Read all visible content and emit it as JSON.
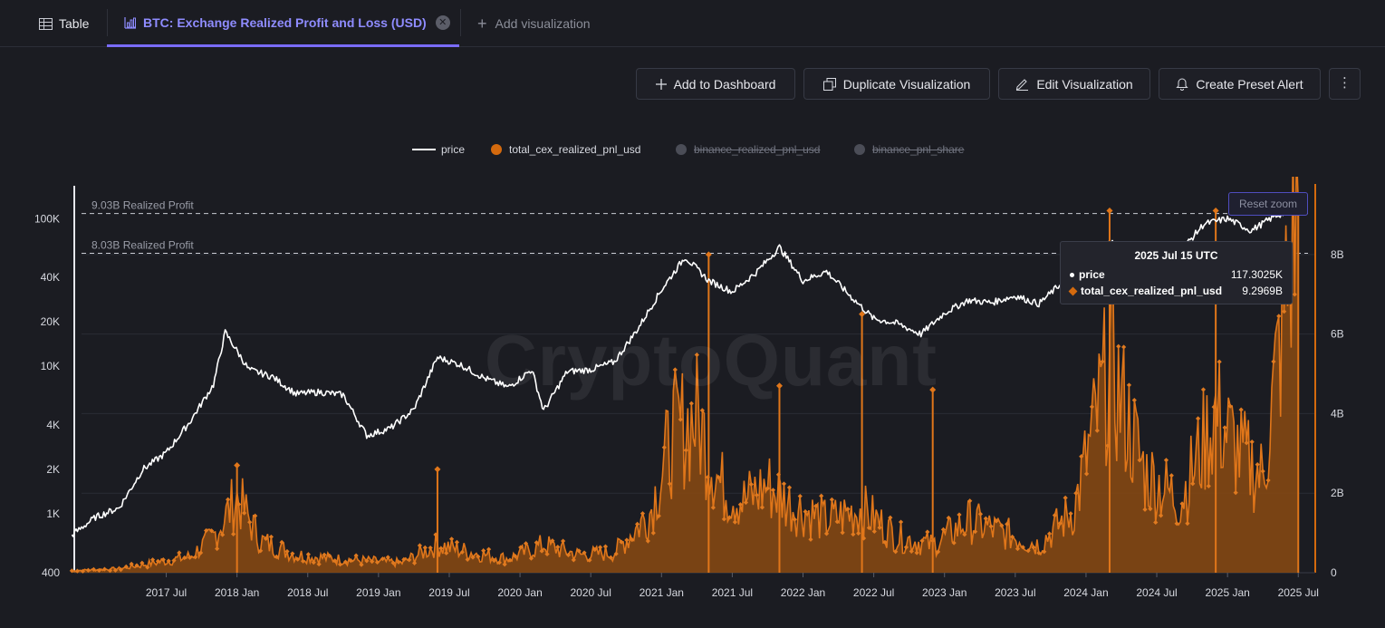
{
  "tabs": {
    "table_label": "Table",
    "active_label": "BTC: Exchange Realized Profit and Loss (USD)",
    "add_label": "Add visualization"
  },
  "toolbar": {
    "add_dashboard": "Add to Dashboard",
    "duplicate": "Duplicate Visualization",
    "edit": "Edit Visualization",
    "preset_alert": "Create Preset Alert",
    "more_icon": "kebab-vertical-icon"
  },
  "legend": [
    {
      "label": "price",
      "color": "#ffffff",
      "enabled": true
    },
    {
      "label": "total_cex_realized_pnl_usd",
      "color": "#d46a0e",
      "enabled": true
    },
    {
      "label": "binance_realized_pnl_usd",
      "color": "#4b4d57",
      "enabled": false
    },
    {
      "label": "binance_pnl_share",
      "color": "#4b4d57",
      "enabled": false
    }
  ],
  "watermark": "CryptoQuant",
  "reset_zoom": "Reset zoom",
  "tooltip": {
    "title": "2025 Jul 15 UTC",
    "rows": [
      {
        "label": "price",
        "value": "117.3025K"
      },
      {
        "label": "total_cex_realized_pnl_usd",
        "value": "9.2969B"
      }
    ]
  },
  "chart_data": {
    "type": "line",
    "x_ticks": [
      "2017 Jul",
      "2018 Jan",
      "2018 Jul",
      "2019 Jan",
      "2019 Jul",
      "2020 Jan",
      "2020 Jul",
      "2021 Jan",
      "2021 Jul",
      "2022 Jan",
      "2022 Jul",
      "2023 Jan",
      "2023 Jul",
      "2024 Jan",
      "2024 Jul",
      "2025 Jan",
      "2025 Jul"
    ],
    "y_left_ticks": [
      "100K",
      "40K",
      "20K",
      "10K",
      "4K",
      "2K",
      "1K",
      "400"
    ],
    "y_left_scale": "log",
    "y_right_ticks": [
      "8B",
      "6B",
      "4B",
      "2B",
      "0"
    ],
    "annotations": [
      "9.03B Realized Profit",
      "8.03B Realized Profit"
    ],
    "price_series": {
      "name": "price",
      "points": [
        [
          "2016-11",
          720
        ],
        [
          "2017-01",
          950
        ],
        [
          "2017-03",
          1100
        ],
        [
          "2017-05",
          2000
        ],
        [
          "2017-07",
          2600
        ],
        [
          "2017-09",
          4200
        ],
        [
          "2017-11",
          7500
        ],
        [
          "2017-12",
          17000
        ],
        [
          "2018-02",
          9500
        ],
        [
          "2018-04",
          8500
        ],
        [
          "2018-06",
          6500
        ],
        [
          "2018-08",
          6700
        ],
        [
          "2018-10",
          6400
        ],
        [
          "2018-12",
          3400
        ],
        [
          "2019-02",
          3800
        ],
        [
          "2019-04",
          5100
        ],
        [
          "2019-06",
          11500
        ],
        [
          "2019-08",
          10200
        ],
        [
          "2019-10",
          8300
        ],
        [
          "2019-12",
          7200
        ],
        [
          "2020-02",
          9500
        ],
        [
          "2020-03",
          5000
        ],
        [
          "2020-05",
          9200
        ],
        [
          "2020-07",
          9500
        ],
        [
          "2020-09",
          10700
        ],
        [
          "2020-11",
          18000
        ],
        [
          "2021-01",
          33000
        ],
        [
          "2021-03",
          55000
        ],
        [
          "2021-05",
          38000
        ],
        [
          "2021-07",
          32000
        ],
        [
          "2021-09",
          43000
        ],
        [
          "2021-11",
          64000
        ],
        [
          "2022-01",
          38000
        ],
        [
          "2022-03",
          44000
        ],
        [
          "2022-05",
          30000
        ],
        [
          "2022-07",
          21000
        ],
        [
          "2022-09",
          19500
        ],
        [
          "2022-11",
          16500
        ],
        [
          "2023-01",
          23000
        ],
        [
          "2023-03",
          28000
        ],
        [
          "2023-05",
          27000
        ],
        [
          "2023-07",
          30000
        ],
        [
          "2023-09",
          26500
        ],
        [
          "2023-11",
          37000
        ],
        [
          "2024-01",
          42000
        ],
        [
          "2024-03",
          70000
        ],
        [
          "2024-05",
          63000
        ],
        [
          "2024-07",
          66000
        ],
        [
          "2024-09",
          60000
        ],
        [
          "2024-11",
          92000
        ],
        [
          "2025-01",
          100000
        ],
        [
          "2025-03",
          83000
        ],
        [
          "2025-05",
          104000
        ],
        [
          "2025-07",
          117300
        ]
      ]
    },
    "pnl_series": {
      "name": "total_cex_realized_pnl_usd",
      "unit": "B",
      "points": [
        [
          "2016-11",
          0.05
        ],
        [
          "2017-03",
          0.1
        ],
        [
          "2017-06",
          0.25
        ],
        [
          "2017-09",
          0.4
        ],
        [
          "2017-11",
          0.9
        ],
        [
          "2018-01",
          1.9
        ],
        [
          "2018-03",
          0.8
        ],
        [
          "2018-06",
          0.45
        ],
        [
          "2018-09",
          0.35
        ],
        [
          "2018-12",
          0.3
        ],
        [
          "2019-03",
          0.25
        ],
        [
          "2019-06",
          0.7
        ],
        [
          "2019-09",
          0.5
        ],
        [
          "2019-12",
          0.35
        ],
        [
          "2020-03",
          0.7
        ],
        [
          "2020-06",
          0.45
        ],
        [
          "2020-09",
          0.5
        ],
        [
          "2020-12",
          1.5
        ],
        [
          "2021-02",
          3.5
        ],
        [
          "2021-04",
          3.9
        ],
        [
          "2021-06",
          2.2
        ],
        [
          "2021-08",
          1.8
        ],
        [
          "2021-10",
          2.2
        ],
        [
          "2021-12",
          1.7
        ],
        [
          "2022-03",
          1.3
        ],
        [
          "2022-06",
          1.6
        ],
        [
          "2022-09",
          0.9
        ],
        [
          "2022-12",
          0.7
        ],
        [
          "2023-03",
          1.3
        ],
        [
          "2023-06",
          1.0
        ],
        [
          "2023-09",
          0.7
        ],
        [
          "2023-12",
          1.6
        ],
        [
          "2024-03",
          5.2
        ],
        [
          "2024-06",
          2.5
        ],
        [
          "2024-09",
          1.8
        ],
        [
          "2024-12",
          4.0
        ],
        [
          "2025-02",
          3.0
        ],
        [
          "2025-04",
          2.4
        ],
        [
          "2025-07",
          9.2969
        ]
      ],
      "spikes": [
        [
          "2018-01",
          2.7
        ],
        [
          "2019-06",
          2.6
        ],
        [
          "2021-05",
          8.0
        ],
        [
          "2021-11",
          4.7
        ],
        [
          "2022-06",
          6.5
        ],
        [
          "2022-12",
          4.6
        ],
        [
          "2024-03",
          9.1
        ],
        [
          "2024-12",
          9.1
        ],
        [
          "2025-07",
          9.2969
        ]
      ]
    }
  }
}
